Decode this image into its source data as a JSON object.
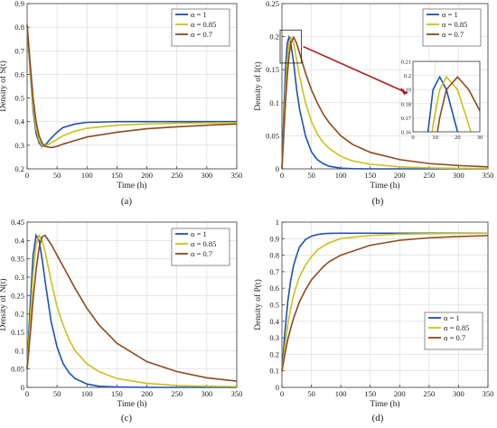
{
  "colors": {
    "alpha_1": "#1f4fb4",
    "alpha_085": "#c9c21a",
    "alpha_07": "#8b4a1e",
    "arrow": "#b01c1c"
  },
  "chart_data": [
    {
      "id": "a",
      "type": "line",
      "caption": "(a)",
      "xlabel": "Time (h)",
      "ylabel": "Density of S(t)",
      "xlim": [
        0,
        350
      ],
      "ylim": [
        0.2,
        0.9
      ],
      "xticks": [
        "0",
        "50",
        "100",
        "150",
        "200",
        "250",
        "300",
        "350"
      ],
      "yticks": [
        "0.2",
        "0.3",
        "0.4",
        "0.5",
        "0.6",
        "0.7",
        "0.8",
        "0.9"
      ],
      "legend_position": "top-right",
      "grid": true,
      "series": [
        {
          "name": "α = 1",
          "color_key": "alpha_1",
          "x": [
            0,
            5,
            10,
            15,
            20,
            25,
            30,
            40,
            50,
            60,
            80,
            100,
            150,
            200,
            250,
            300,
            350
          ],
          "y": [
            0.81,
            0.62,
            0.45,
            0.35,
            0.31,
            0.295,
            0.3,
            0.33,
            0.355,
            0.375,
            0.39,
            0.397,
            0.4,
            0.4,
            0.4,
            0.4,
            0.4
          ]
        },
        {
          "name": "α = 0.85",
          "color_key": "alpha_085",
          "x": [
            0,
            5,
            10,
            15,
            20,
            25,
            30,
            40,
            50,
            60,
            80,
            100,
            150,
            200,
            250,
            300,
            350
          ],
          "y": [
            0.81,
            0.63,
            0.47,
            0.37,
            0.32,
            0.3,
            0.298,
            0.31,
            0.325,
            0.34,
            0.36,
            0.372,
            0.385,
            0.39,
            0.393,
            0.395,
            0.396
          ]
        },
        {
          "name": "α = 0.7",
          "color_key": "alpha_07",
          "x": [
            0,
            5,
            10,
            15,
            20,
            25,
            30,
            40,
            50,
            60,
            80,
            100,
            150,
            200,
            250,
            300,
            350
          ],
          "y": [
            0.81,
            0.65,
            0.5,
            0.4,
            0.34,
            0.31,
            0.295,
            0.29,
            0.295,
            0.305,
            0.32,
            0.335,
            0.355,
            0.37,
            0.378,
            0.385,
            0.39
          ]
        }
      ]
    },
    {
      "id": "b",
      "type": "line",
      "caption": "(b)",
      "xlabel": "Time (h)",
      "ylabel": "Density of I(t)",
      "xlim": [
        0,
        350
      ],
      "ylim": [
        0,
        0.25
      ],
      "xticks": [
        "0",
        "50",
        "100",
        "150",
        "200",
        "250",
        "300",
        "350"
      ],
      "yticks": [
        "0",
        "0.05",
        "0.1",
        "0.15",
        "0.2",
        "0.25"
      ],
      "legend_position": "top-right",
      "grid": true,
      "inset": {
        "xlim": [
          0,
          30
        ],
        "ylim": [
          0.16,
          0.21
        ],
        "xticks": [
          "0",
          "10",
          "20",
          "30"
        ],
        "yticks": [
          "0.16",
          "0.17",
          "0.18",
          "0.19",
          "0.2",
          "0.21"
        ]
      },
      "series": [
        {
          "name": "α = 1",
          "color_key": "alpha_1",
          "x": [
            0,
            3,
            6,
            9,
            12,
            15,
            20,
            25,
            30,
            40,
            50,
            60,
            70,
            80,
            100,
            120,
            150,
            200,
            250,
            300,
            350
          ],
          "y": [
            0,
            0.08,
            0.15,
            0.19,
            0.199,
            0.19,
            0.16,
            0.12,
            0.09,
            0.05,
            0.026,
            0.014,
            0.008,
            0.004,
            0.001,
            0.0003,
            0,
            0,
            0,
            0,
            0
          ]
        },
        {
          "name": "α = 0.85",
          "color_key": "alpha_085",
          "x": [
            0,
            3,
            6,
            9,
            12,
            15,
            20,
            25,
            30,
            40,
            50,
            60,
            70,
            80,
            100,
            120,
            150,
            200,
            250,
            300,
            350
          ],
          "y": [
            0,
            0.06,
            0.12,
            0.165,
            0.19,
            0.199,
            0.19,
            0.165,
            0.14,
            0.1,
            0.072,
            0.053,
            0.04,
            0.031,
            0.019,
            0.012,
            0.007,
            0.003,
            0.0015,
            0.0008,
            0.0005
          ]
        },
        {
          "name": "α = 0.7",
          "color_key": "alpha_07",
          "x": [
            0,
            3,
            6,
            9,
            12,
            15,
            20,
            25,
            30,
            40,
            50,
            60,
            70,
            80,
            100,
            120,
            150,
            200,
            250,
            300,
            350
          ],
          "y": [
            0,
            0.05,
            0.1,
            0.14,
            0.17,
            0.19,
            0.199,
            0.19,
            0.175,
            0.145,
            0.12,
            0.1,
            0.083,
            0.07,
            0.05,
            0.037,
            0.025,
            0.014,
            0.008,
            0.005,
            0.003
          ]
        }
      ]
    },
    {
      "id": "c",
      "type": "line",
      "caption": "(c)",
      "xlabel": "Time (h)",
      "ylabel": "Density of N(t)",
      "xlim": [
        0,
        350
      ],
      "ylim": [
        0,
        0.45
      ],
      "xticks": [
        "0",
        "50",
        "100",
        "150",
        "200",
        "250",
        "300",
        "350"
      ],
      "yticks": [
        "0",
        "0.05",
        "0.1",
        "0.15",
        "0.2",
        "0.25",
        "0.3",
        "0.35",
        "0.4",
        "0.45"
      ],
      "legend_position": "top-right",
      "grid": true,
      "series": [
        {
          "name": "α = 1",
          "color_key": "alpha_1",
          "x": [
            0,
            5,
            10,
            15,
            20,
            25,
            30,
            40,
            50,
            60,
            70,
            80,
            100,
            120,
            150,
            200,
            250,
            300,
            350
          ],
          "y": [
            0.05,
            0.22,
            0.36,
            0.414,
            0.4,
            0.35,
            0.29,
            0.18,
            0.11,
            0.065,
            0.04,
            0.024,
            0.009,
            0.003,
            0.001,
            0,
            0,
            0,
            0
          ]
        },
        {
          "name": "α = 0.85",
          "color_key": "alpha_085",
          "x": [
            0,
            5,
            10,
            15,
            20,
            25,
            30,
            40,
            50,
            60,
            70,
            80,
            100,
            120,
            150,
            200,
            250,
            300,
            350
          ],
          "y": [
            0.05,
            0.18,
            0.31,
            0.39,
            0.414,
            0.4,
            0.37,
            0.29,
            0.22,
            0.17,
            0.13,
            0.1,
            0.064,
            0.043,
            0.024,
            0.011,
            0.005,
            0.003,
            0.002
          ]
        },
        {
          "name": "α = 0.7",
          "color_key": "alpha_07",
          "x": [
            0,
            5,
            10,
            15,
            20,
            25,
            30,
            40,
            50,
            60,
            70,
            80,
            100,
            120,
            150,
            200,
            250,
            300,
            350
          ],
          "y": [
            0.05,
            0.14,
            0.24,
            0.32,
            0.38,
            0.41,
            0.414,
            0.39,
            0.36,
            0.33,
            0.3,
            0.27,
            0.215,
            0.17,
            0.12,
            0.07,
            0.043,
            0.026,
            0.017
          ]
        }
      ]
    },
    {
      "id": "d",
      "type": "line",
      "caption": "(d)",
      "xlabel": "Time (h)",
      "ylabel": "Density of P(t)",
      "xlim": [
        0,
        350
      ],
      "ylim": [
        0,
        1
      ],
      "xticks": [
        "0",
        "50",
        "100",
        "150",
        "200",
        "250",
        "300",
        "350"
      ],
      "yticks": [
        "0",
        "0.1",
        "0.2",
        "0.3",
        "0.4",
        "0.5",
        "0.6",
        "0.7",
        "0.8",
        "0.9",
        "1"
      ],
      "legend_position": "bottom-right",
      "grid": true,
      "series": [
        {
          "name": "α = 1",
          "color_key": "alpha_1",
          "x": [
            0,
            5,
            10,
            15,
            20,
            25,
            30,
            40,
            50,
            60,
            70,
            80,
            100,
            150,
            200,
            250,
            300,
            350
          ],
          "y": [
            0.1,
            0.33,
            0.52,
            0.65,
            0.74,
            0.8,
            0.85,
            0.895,
            0.915,
            0.925,
            0.93,
            0.932,
            0.933,
            0.933,
            0.933,
            0.933,
            0.933,
            0.933
          ]
        },
        {
          "name": "α = 0.85",
          "color_key": "alpha_085",
          "x": [
            0,
            5,
            10,
            15,
            20,
            25,
            30,
            40,
            50,
            60,
            70,
            80,
            100,
            150,
            200,
            250,
            300,
            350
          ],
          "y": [
            0.1,
            0.25,
            0.38,
            0.48,
            0.56,
            0.62,
            0.67,
            0.74,
            0.79,
            0.83,
            0.855,
            0.875,
            0.9,
            0.92,
            0.927,
            0.93,
            0.931,
            0.932
          ]
        },
        {
          "name": "α = 0.7",
          "color_key": "alpha_07",
          "x": [
            0,
            5,
            10,
            15,
            20,
            25,
            30,
            40,
            50,
            60,
            70,
            80,
            100,
            150,
            200,
            250,
            300,
            350
          ],
          "y": [
            0.1,
            0.2,
            0.29,
            0.36,
            0.42,
            0.47,
            0.52,
            0.59,
            0.65,
            0.69,
            0.73,
            0.76,
            0.8,
            0.86,
            0.89,
            0.905,
            0.913,
            0.918
          ]
        }
      ]
    }
  ]
}
